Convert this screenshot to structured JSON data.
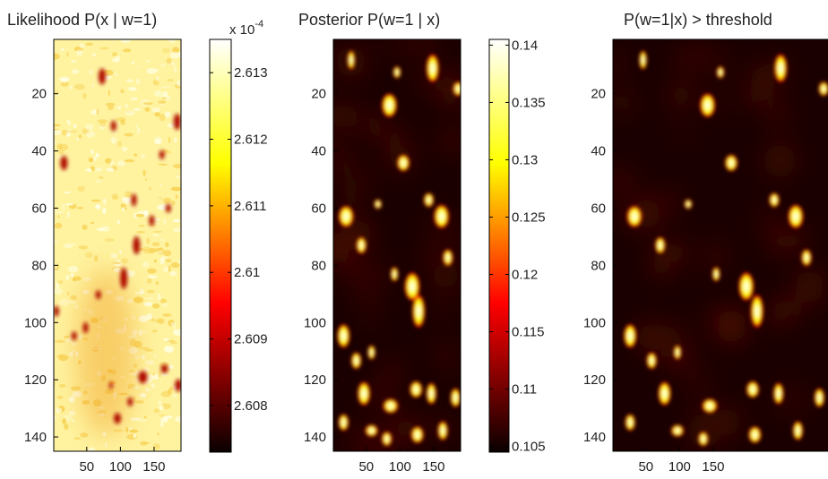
{
  "chart_data": [
    {
      "type": "heatmap",
      "title": "Likelihood  P(x | w=1)",
      "xlabel": "",
      "ylabel": "",
      "xlim": [
        1,
        190
      ],
      "ylim": [
        1,
        145
      ],
      "xticks": [
        "50",
        "100",
        "150"
      ],
      "yticks": [
        "20",
        "40",
        "60",
        "80",
        "100",
        "120",
        "140"
      ],
      "colormap": "hot",
      "colorbar": {
        "range": [
          2.6073,
          2.6135
        ],
        "multiplier": "x 10",
        "exponent": "-4",
        "ticks": [
          "2.613",
          "2.612",
          "2.611",
          "2.61",
          "2.609",
          "2.608"
        ],
        "tick_values": [
          2.613,
          2.612,
          2.611,
          2.61,
          2.609,
          2.608
        ]
      }
    },
    {
      "type": "heatmap",
      "title": "Posterior  P(w=1 | x)",
      "xlabel": "",
      "ylabel": "",
      "xlim": [
        1,
        190
      ],
      "ylim": [
        1,
        145
      ],
      "xticks": [
        "50",
        "100",
        "150"
      ],
      "yticks": [
        "20",
        "40",
        "60",
        "80",
        "100",
        "120",
        "140"
      ],
      "colormap": "hot",
      "colorbar": {
        "range": [
          0.1045,
          0.1405
        ],
        "ticks": [
          "0.14",
          "0.135",
          "0.13",
          "0.125",
          "0.12",
          "0.115",
          "0.11",
          "0.105"
        ],
        "tick_values": [
          0.14,
          0.135,
          0.13,
          0.125,
          0.12,
          0.115,
          0.11,
          0.105
        ]
      }
    },
    {
      "type": "heatmap",
      "title": "P(w=1|x) > threshold",
      "xlabel": "",
      "ylabel": "",
      "xlim": [
        1,
        190
      ],
      "ylim": [
        1,
        145
      ],
      "xticks": [
        "50",
        "100",
        "150"
      ],
      "yticks": [
        "20",
        "40",
        "60",
        "80",
        "100",
        "120",
        "140"
      ],
      "colormap": "hot"
    }
  ]
}
